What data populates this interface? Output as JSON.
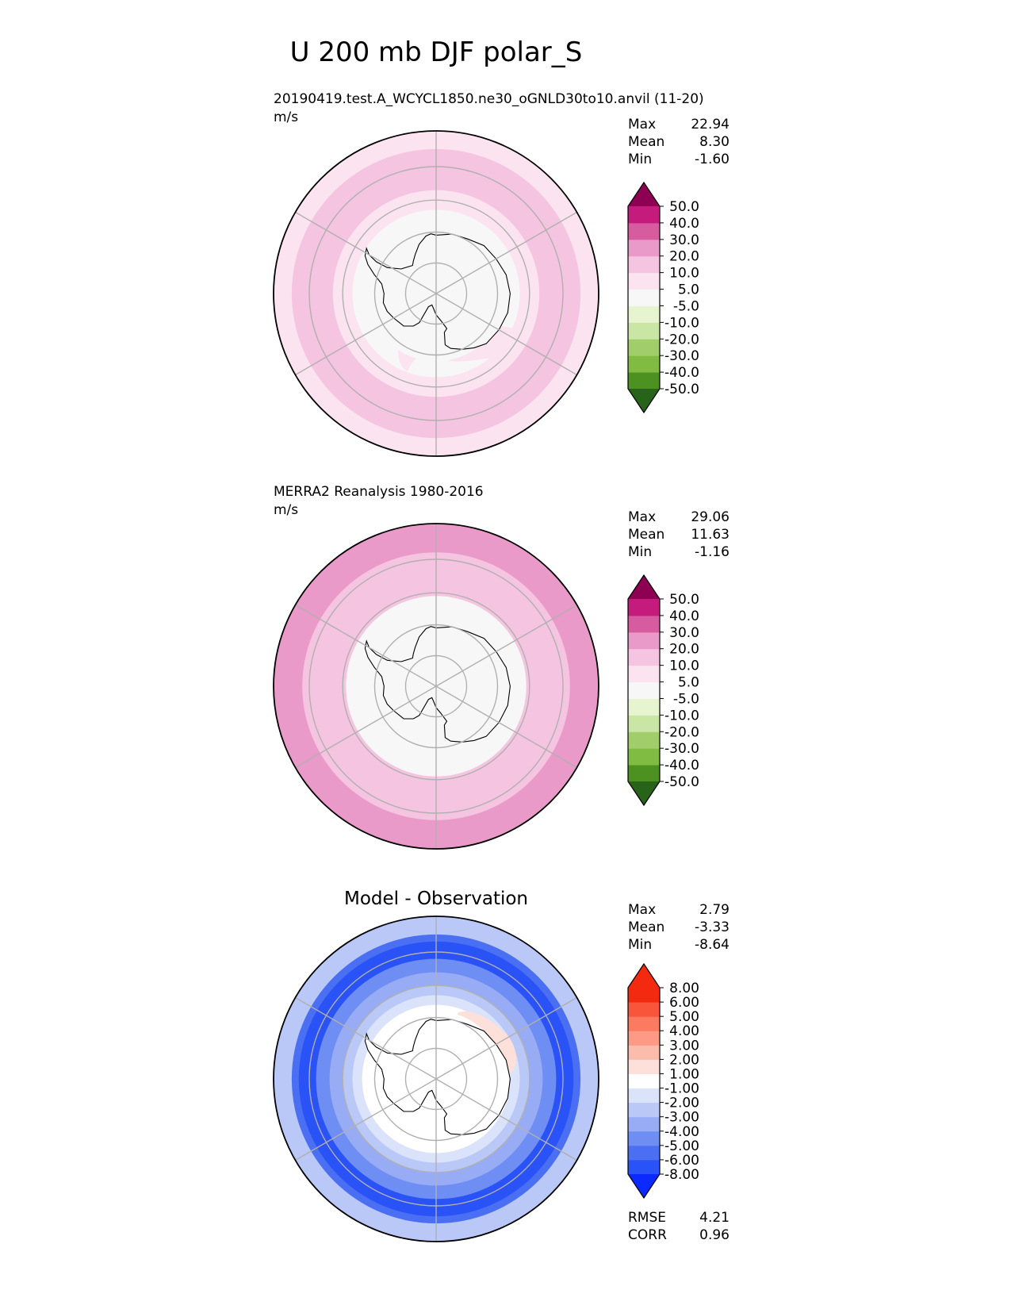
{
  "title": "U 200 mb DJF polar_S",
  "palettes": {
    "pink_green": [
      "#276419",
      "#4d9221",
      "#7fbc41",
      "#b8e186",
      "#e6f5d0",
      "#f7f7f7",
      "#fde0ef",
      "#f1b6da",
      "#de77ae",
      "#c51b7d",
      "#8e0152"
    ],
    "pink_green_12": [
      "#276419",
      "#4d9221",
      "#7fbc41",
      "#a1cd6a",
      "#c9e6a4",
      "#e6f5d0",
      "#f7f7f7",
      "#fbe4f0",
      "#f5c4e0",
      "#e99ac8",
      "#d65c9f",
      "#c51b7d",
      "#8e0152"
    ],
    "blue_red": [
      "#0a2aff",
      "#2952f7",
      "#4a6ff2",
      "#6f8ef3",
      "#97acf5",
      "#bac8f7",
      "#dbe3fb",
      "#ffffff",
      "#fde0d9",
      "#fcbcab",
      "#fc9a85",
      "#fb7a60",
      "#f8553a",
      "#f42a10"
    ]
  },
  "chart_data": [
    {
      "type": "polar_map",
      "name": "test",
      "projection": "South Polar Stereographic",
      "title_left": "20190419.test.A_WCYCL1850.ne30_oGNLD30to10.anvil (11-20)",
      "units": "m/s",
      "stats": [
        {
          "label": "Max",
          "value": "22.94"
        },
        {
          "label": "Mean",
          "value": "8.30"
        },
        {
          "label": "Min",
          "value": "-1.60"
        }
      ],
      "colorbar": {
        "palette": "pink_green_12",
        "levels": [
          "-50.0",
          "-40.0",
          "-30.0",
          "-20.0",
          "-10.0",
          "-5.0",
          "5.0",
          "10.0",
          "20.0",
          "30.0",
          "40.0",
          "50.0"
        ],
        "extend": "both"
      },
      "zonal_bands": [
        {
          "lat": -45,
          "value": 15
        },
        {
          "lat": -50,
          "value": 12
        },
        {
          "lat": -57,
          "value": 8
        },
        {
          "lat": -63,
          "value": 4
        }
      ]
    },
    {
      "type": "polar_map",
      "name": "reference",
      "projection": "South Polar Stereographic",
      "title_left": "MERRA2 Reanalysis 1980-2016",
      "units": "m/s",
      "stats": [
        {
          "label": "Max",
          "value": "29.06"
        },
        {
          "label": "Mean",
          "value": "11.63"
        },
        {
          "label": "Min",
          "value": "-1.16"
        }
      ],
      "colorbar": {
        "palette": "pink_green_12",
        "levels": [
          "-50.0",
          "-40.0",
          "-30.0",
          "-20.0",
          "-10.0",
          "-5.0",
          "5.0",
          "10.0",
          "20.0",
          "30.0",
          "40.0",
          "50.0"
        ],
        "extend": "both"
      },
      "zonal_bands": [
        {
          "lat": -45,
          "value": 25
        },
        {
          "lat": -48,
          "value": 15
        },
        {
          "lat": -55,
          "value": 12
        },
        {
          "lat": -61,
          "value": 4
        }
      ]
    },
    {
      "type": "polar_map",
      "name": "diff",
      "projection": "South Polar Stereographic",
      "title_center": "Model - Observation",
      "stats": [
        {
          "label": "Max",
          "value": "2.79"
        },
        {
          "label": "Mean",
          "value": "-3.33"
        },
        {
          "label": "Min",
          "value": "-8.64"
        }
      ],
      "colorbar": {
        "palette": "blue_red",
        "levels": [
          "-8.00",
          "-6.00",
          "-5.00",
          "-4.00",
          "-3.00",
          "-2.00",
          "-1.00",
          "1.00",
          "2.00",
          "3.00",
          "4.00",
          "5.00",
          "6.00",
          "8.00"
        ],
        "extend": "both"
      },
      "zonal_bands": [
        {
          "lat": -45,
          "value": -5.5
        },
        {
          "lat": -47,
          "value": -7
        },
        {
          "lat": -52,
          "value": -4.5
        },
        {
          "lat": -56,
          "value": -3.5
        },
        {
          "lat": -60,
          "value": -2.5
        },
        {
          "lat": -63,
          "value": -1.5
        },
        {
          "lat": -66,
          "value": 0
        }
      ],
      "metrics": [
        {
          "label": "RMSE",
          "value": "4.21"
        },
        {
          "label": "CORR",
          "value": "0.96"
        }
      ]
    }
  ]
}
